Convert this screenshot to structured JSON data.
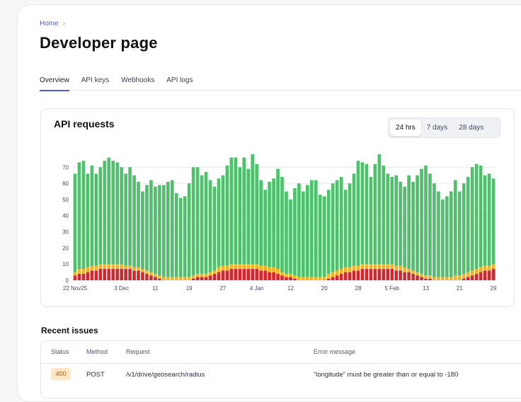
{
  "breadcrumb": {
    "home": "Home",
    "separator_icon": "chevron-right-icon"
  },
  "page_title": "Developer page",
  "tabs": [
    {
      "label": "Overview",
      "active": true
    },
    {
      "label": "API keys",
      "active": false
    },
    {
      "label": "Webhooks",
      "active": false
    },
    {
      "label": "API logs",
      "active": false
    }
  ],
  "api_card": {
    "title": "API requests",
    "range_options": [
      {
        "label": "24 hrs",
        "active": true
      },
      {
        "label": "7 days",
        "active": false
      },
      {
        "label": "28 days",
        "active": false
      }
    ]
  },
  "colors": {
    "success": "#4cc26a",
    "warning": "#f7b319",
    "error": "#d9242b",
    "accent": "#4b5bd6"
  },
  "chart_data": {
    "type": "bar",
    "stacked": true,
    "ylim": [
      0,
      78
    ],
    "yticks": [
      0,
      10,
      20,
      30,
      40,
      50,
      60,
      70
    ],
    "x_tick_labels": [
      {
        "index": 0,
        "label": "22 Nov25"
      },
      {
        "index": 11,
        "label": "3 Dec"
      },
      {
        "index": 19,
        "label": "11"
      },
      {
        "index": 27,
        "label": "19"
      },
      {
        "index": 35,
        "label": "27"
      },
      {
        "index": 43,
        "label": "4 Jan"
      },
      {
        "index": 51,
        "label": "12"
      },
      {
        "index": 59,
        "label": "20"
      },
      {
        "index": 67,
        "label": "28"
      },
      {
        "index": 75,
        "label": "5 Feb"
      },
      {
        "index": 83,
        "label": "13"
      },
      {
        "index": 91,
        "label": "21"
      },
      {
        "index": 99,
        "label": "29"
      }
    ],
    "series": [
      {
        "color": "error",
        "values": [
          3,
          4,
          4,
          5,
          6,
          6,
          7,
          7,
          7,
          7,
          7,
          7,
          7,
          7,
          6,
          6,
          5,
          4,
          3,
          2,
          1,
          0,
          0,
          0,
          0,
          0,
          0,
          0,
          1,
          2,
          2,
          2,
          3,
          4,
          5,
          6,
          6,
          7,
          7,
          7,
          7,
          7,
          7,
          7,
          6,
          6,
          5,
          5,
          4,
          3,
          2,
          2,
          1,
          0,
          0,
          0,
          0,
          0,
          0,
          0,
          1,
          2,
          3,
          4,
          5,
          5,
          6,
          6,
          7,
          7,
          7,
          7,
          7,
          7,
          7,
          7,
          6,
          6,
          5,
          5,
          4,
          3,
          2,
          1,
          1,
          0,
          0,
          0,
          0,
          0,
          0,
          0,
          1,
          2,
          3,
          4,
          5,
          6,
          6,
          7
        ]
      },
      {
        "color": "warning",
        "values": [
          2,
          3,
          3,
          3,
          3,
          3,
          3,
          3,
          3,
          3,
          3,
          3,
          2,
          2,
          2,
          2,
          2,
          2,
          2,
          2,
          2,
          2,
          2,
          2,
          2,
          2,
          2,
          2,
          2,
          2,
          2,
          2,
          2,
          2,
          3,
          3,
          3,
          3,
          3,
          3,
          3,
          3,
          3,
          3,
          3,
          3,
          3,
          3,
          3,
          2,
          2,
          2,
          2,
          2,
          2,
          2,
          2,
          2,
          2,
          2,
          3,
          3,
          3,
          3,
          3,
          3,
          3,
          3,
          3,
          3,
          3,
          3,
          3,
          3,
          3,
          3,
          3,
          3,
          3,
          2,
          2,
          2,
          2,
          2,
          2,
          2,
          2,
          2,
          2,
          2,
          3,
          3,
          3,
          3,
          3,
          3,
          3,
          3,
          3,
          3
        ]
      },
      {
        "color": "success",
        "values": [
          61,
          66,
          67,
          58,
          62,
          57,
          60,
          64,
          66,
          64,
          63,
          60,
          57,
          61,
          57,
          53,
          48,
          53,
          57,
          54,
          56,
          57,
          59,
          60,
          52,
          49,
          50,
          58,
          67,
          66,
          61,
          63,
          57,
          52,
          55,
          56,
          62,
          66,
          66,
          60,
          66,
          59,
          68,
          62,
          53,
          47,
          53,
          55,
          62,
          59,
          51,
          46,
          54,
          58,
          53,
          57,
          60,
          60,
          51,
          50,
          52,
          55,
          56,
          57,
          48,
          52,
          57,
          65,
          63,
          62,
          54,
          62,
          68,
          61,
          56,
          54,
          56,
          52,
          50,
          58,
          55,
          60,
          65,
          68,
          63,
          58,
          53,
          48,
          50,
          53,
          59,
          52,
          56,
          59,
          64,
          65,
          63,
          56,
          57,
          53
        ]
      }
    ]
  },
  "recent_issues": {
    "title": "Recent issues",
    "columns": [
      "Status",
      "Method",
      "Request",
      "Error message"
    ],
    "rows": [
      {
        "status": "400",
        "method": "POST",
        "request": "/v1/drive/geosearch/radius",
        "error": "“longitude” must be greater than or equal to -180"
      }
    ]
  }
}
